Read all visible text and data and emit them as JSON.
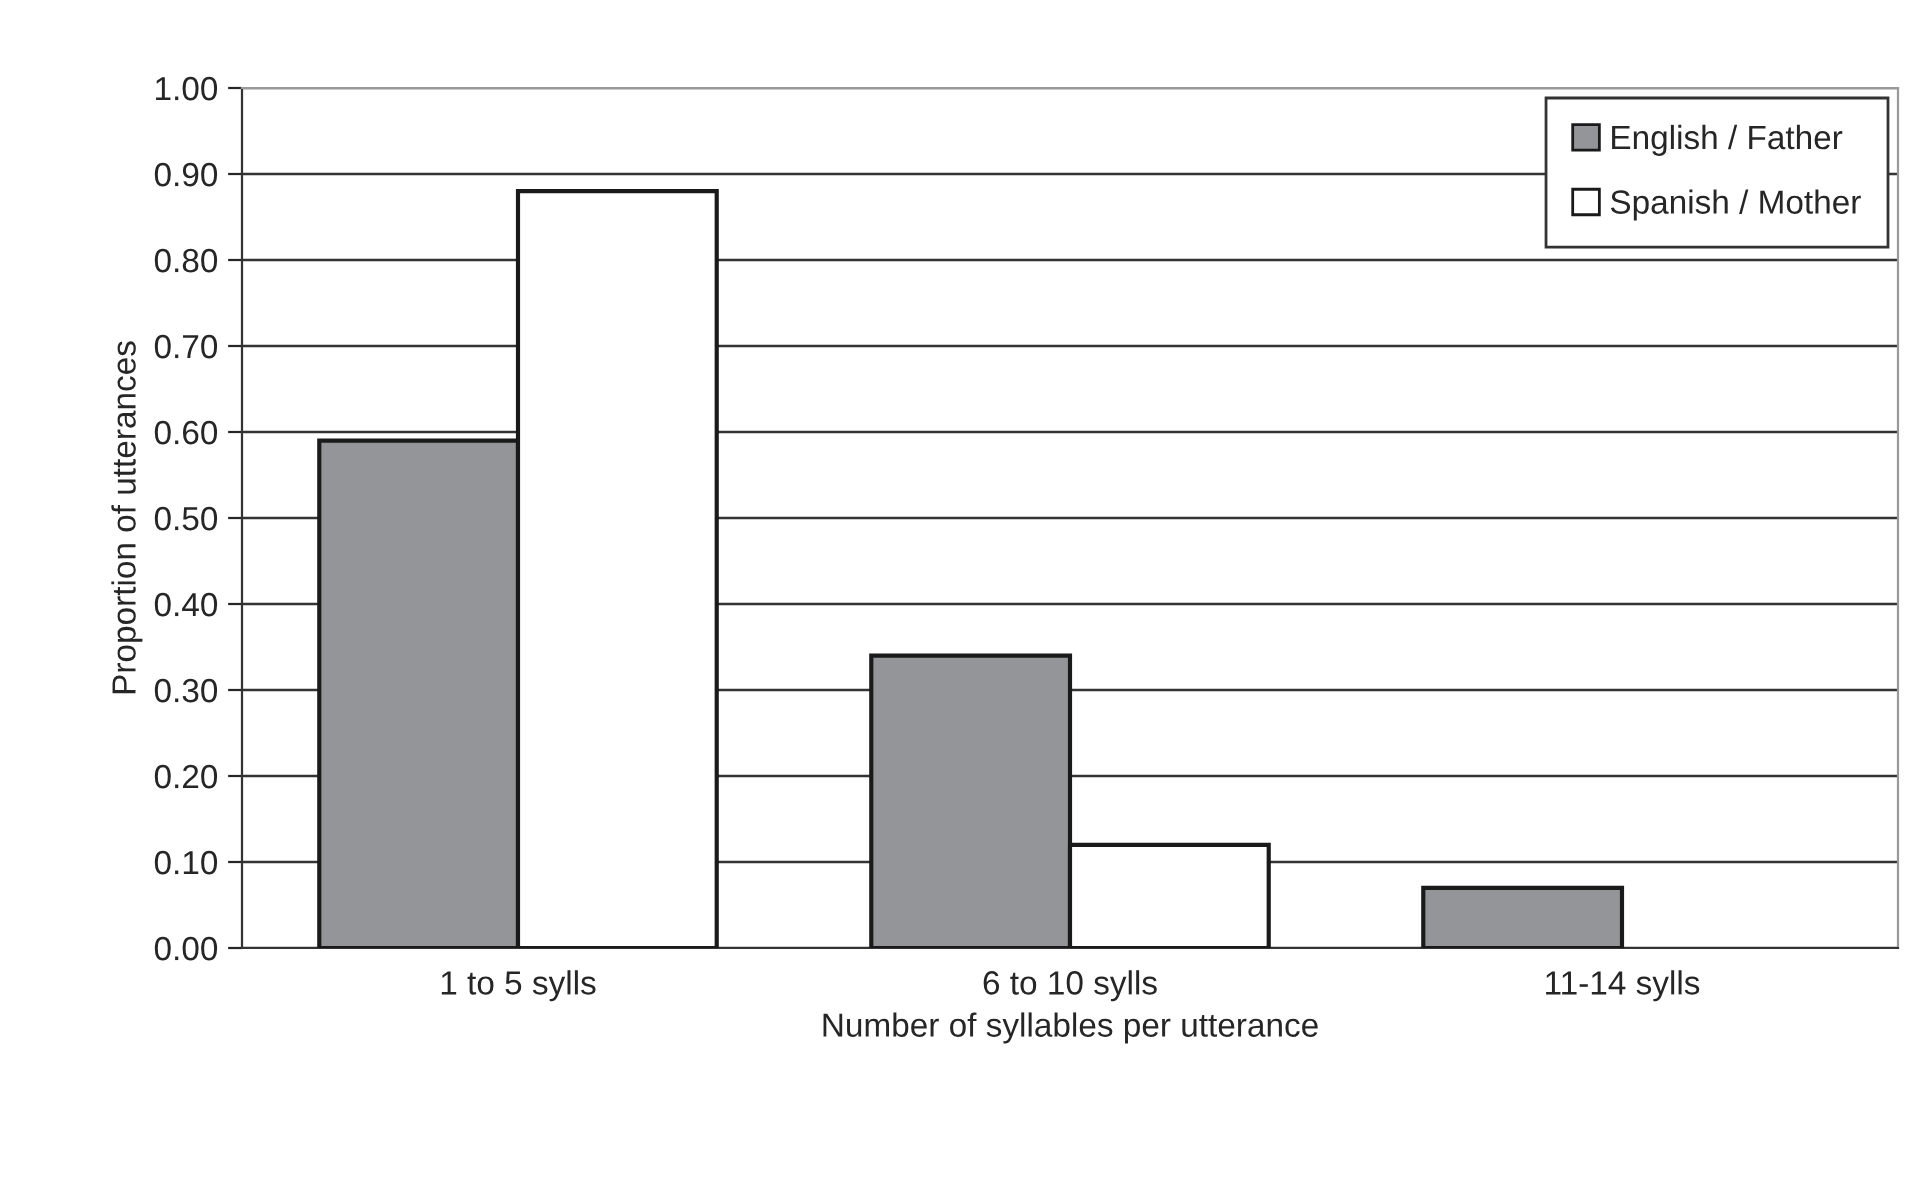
{
  "chart_data": {
    "type": "bar",
    "xlabel": "Number of syllables per utterance",
    "ylabel": "Proportion of utterances",
    "categories": [
      "1 to 5 sylls",
      "6 to 10 sylls",
      "11-14 sylls"
    ],
    "series": [
      {
        "name": "English / Father",
        "color": "#939598",
        "values": [
          0.59,
          0.34,
          0.07
        ]
      },
      {
        "name": "Spanish / Mother",
        "color": "#ffffff",
        "values": [
          0.88,
          0.12,
          null
        ]
      }
    ],
    "ylim": [
      0,
      1
    ],
    "yticks": [
      {
        "value": 0,
        "label": "0.00"
      },
      {
        "value": 0.1,
        "label": "0.10"
      },
      {
        "value": 0.2,
        "label": "0.20"
      },
      {
        "value": 0.3,
        "label": "0.30"
      },
      {
        "value": 0.4,
        "label": "0.40"
      },
      {
        "value": 0.5,
        "label": "0.50"
      },
      {
        "value": 0.6,
        "label": "0.60"
      },
      {
        "value": 0.7,
        "label": "0.70"
      },
      {
        "value": 0.8,
        "label": "0.80"
      },
      {
        "value": 0.9,
        "label": "0.90"
      },
      {
        "value": 1,
        "label": "1.00"
      }
    ],
    "grid": "y",
    "legend": "top right"
  }
}
